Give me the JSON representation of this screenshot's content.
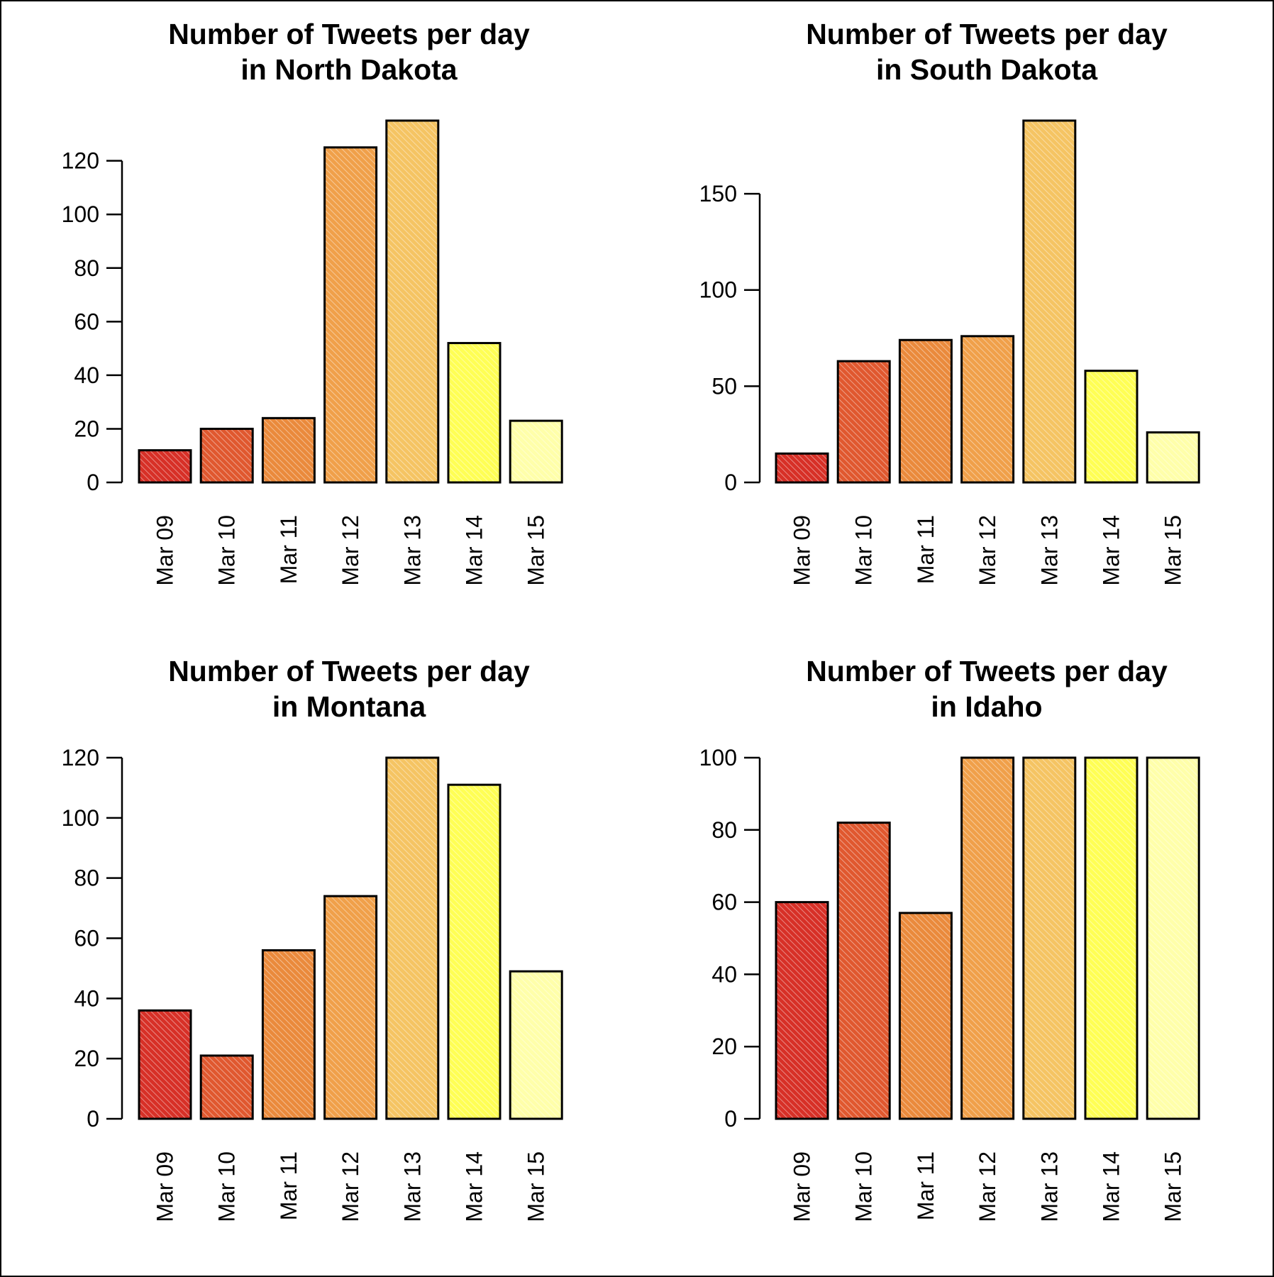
{
  "figure_frame": true,
  "chart_data": [
    {
      "type": "bar",
      "title": [
        "Number of Tweets per day",
        "in North Dakota"
      ],
      "categories": [
        "Mar 09",
        "Mar 10",
        "Mar 11",
        "Mar 12",
        "Mar 13",
        "Mar 14",
        "Mar 15"
      ],
      "values": [
        12,
        20,
        24,
        125,
        135,
        52,
        23
      ],
      "xlabel": "",
      "ylabel": "",
      "yticks": [
        0,
        20,
        40,
        60,
        80,
        100,
        120
      ],
      "ylim": [
        0,
        135
      ],
      "colors": [
        "#d73027",
        "#e0582f",
        "#ea8a3c",
        "#f0a04a",
        "#f5c463",
        "#ffff55",
        "#ffffaa"
      ],
      "bar_pattern": "diagonal-hatch",
      "grid": false
    },
    {
      "type": "bar",
      "title": [
        "Number of Tweets per day",
        "in South Dakota"
      ],
      "categories": [
        "Mar 09",
        "Mar 10",
        "Mar 11",
        "Mar 12",
        "Mar 13",
        "Mar 14",
        "Mar 15"
      ],
      "values": [
        15,
        63,
        74,
        76,
        188,
        58,
        26
      ],
      "xlabel": "",
      "ylabel": "",
      "yticks": [
        0,
        50,
        100,
        150
      ],
      "ylim": [
        0,
        188
      ],
      "colors": [
        "#d73027",
        "#e0582f",
        "#ea8a3c",
        "#f0a04a",
        "#f5c463",
        "#ffff55",
        "#ffffaa"
      ],
      "bar_pattern": "diagonal-hatch",
      "grid": false
    },
    {
      "type": "bar",
      "title": [
        "Number of Tweets per day",
        "in Montana"
      ],
      "categories": [
        "Mar 09",
        "Mar 10",
        "Mar 11",
        "Mar 12",
        "Mar 13",
        "Mar 14",
        "Mar 15"
      ],
      "values": [
        36,
        21,
        56,
        74,
        120,
        111,
        49
      ],
      "xlabel": "",
      "ylabel": "",
      "yticks": [
        0,
        20,
        40,
        60,
        80,
        100,
        120
      ],
      "ylim": [
        0,
        120
      ],
      "colors": [
        "#d73027",
        "#e0582f",
        "#ea8a3c",
        "#f0a04a",
        "#f5c463",
        "#ffff55",
        "#ffffaa"
      ],
      "bar_pattern": "diagonal-hatch",
      "grid": false
    },
    {
      "type": "bar",
      "title": [
        "Number of Tweets per day",
        "in Idaho"
      ],
      "categories": [
        "Mar 09",
        "Mar 10",
        "Mar 11",
        "Mar 12",
        "Mar 13",
        "Mar 14",
        "Mar 15"
      ],
      "values": [
        60,
        82,
        57,
        100,
        100,
        100,
        100
      ],
      "xlabel": "",
      "ylabel": "",
      "yticks": [
        0,
        20,
        40,
        60,
        80,
        100
      ],
      "ylim": [
        0,
        100
      ],
      "colors": [
        "#d73027",
        "#e0582f",
        "#ea8a3c",
        "#f0a04a",
        "#f5c463",
        "#ffff55",
        "#ffffaa"
      ],
      "bar_pattern": "diagonal-hatch",
      "grid": false
    }
  ]
}
